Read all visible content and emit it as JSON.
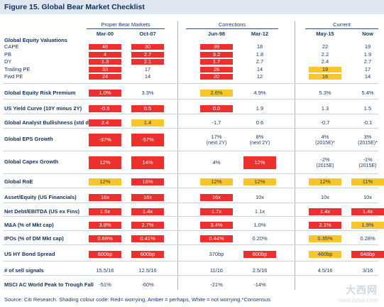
{
  "title": "Figure 15. Global Bear Market Checklist",
  "groups": [
    {
      "label": "Proper Bear Markets"
    },
    {
      "label": "Corrections"
    },
    {
      "label": "Current"
    }
  ],
  "columns": [
    "Mar-00",
    "Oct-07",
    "Jun-98",
    "Mar-12",
    "May-15",
    "Now"
  ],
  "valuation_heading": "Global Equity Valuations",
  "rows": [
    {
      "label": "CAPE",
      "bold": false,
      "cells": [
        {
          "v": "48",
          "c": "red"
        },
        {
          "v": "30",
          "c": "red"
        },
        {
          "v": "39",
          "c": "red"
        },
        {
          "v": "18",
          "c": ""
        },
        {
          "v": "22",
          "c": ""
        },
        {
          "v": "19",
          "c": ""
        }
      ]
    },
    {
      "label": "PB",
      "bold": false,
      "cells": [
        {
          "v": "4",
          "c": "red"
        },
        {
          "v": "2.7",
          "c": "red"
        },
        {
          "v": "3.2",
          "c": "red"
        },
        {
          "v": "1.8",
          "c": ""
        },
        {
          "v": "2.2",
          "c": ""
        },
        {
          "v": "1.9",
          "c": ""
        }
      ]
    },
    {
      "label": "DY",
      "bold": false,
      "cells": [
        {
          "v": "1.3",
          "c": "red"
        },
        {
          "v": "2.1",
          "c": "red"
        },
        {
          "v": "1.7",
          "c": "red"
        },
        {
          "v": "2.7",
          "c": ""
        },
        {
          "v": "2.4",
          "c": ""
        },
        {
          "v": "2.7",
          "c": ""
        }
      ]
    },
    {
      "label": "Trailing PE",
      "bold": false,
      "cells": [
        {
          "v": "33",
          "c": "red"
        },
        {
          "v": "17",
          "c": ""
        },
        {
          "v": "26",
          "c": "red"
        },
        {
          "v": "14",
          "c": ""
        },
        {
          "v": "19",
          "c": "amber"
        },
        {
          "v": "17",
          "c": ""
        }
      ]
    },
    {
      "label": "Fwd PE",
      "bold": false,
      "cells": [
        {
          "v": "24",
          "c": "red"
        },
        {
          "v": "14",
          "c": ""
        },
        {
          "v": "20",
          "c": "red"
        },
        {
          "v": "12",
          "c": ""
        },
        {
          "v": "16",
          "c": "amber"
        },
        {
          "v": "14",
          "c": ""
        }
      ]
    },
    {
      "label": "Global Equity Risk Premium",
      "bold": true,
      "cells": [
        {
          "v": "1.0%",
          "c": "red"
        },
        {
          "v": "3.3%",
          "c": ""
        },
        {
          "v": "2.6%",
          "c": "amber"
        },
        {
          "v": "4.9%",
          "c": ""
        },
        {
          "v": "5.3%",
          "c": ""
        },
        {
          "v": "5.4%",
          "c": ""
        }
      ]
    },
    {
      "label": "US Yield Curve (10Y minus 2Y)",
      "bold": true,
      "cells": [
        {
          "v": "-0.5",
          "c": "red"
        },
        {
          "v": "0.5",
          "c": "red"
        },
        {
          "v": "0.0",
          "c": "red"
        },
        {
          "v": "1.9",
          "c": ""
        },
        {
          "v": "1.3",
          "c": ""
        },
        {
          "v": "1.5",
          "c": ""
        }
      ]
    },
    {
      "label": "Global Analyst Bullishness (std dev)",
      "bold": true,
      "cells": [
        {
          "v": "2.4",
          "c": "red"
        },
        {
          "v": "1.4",
          "c": "amber"
        },
        {
          "v": "-1.7",
          "c": ""
        },
        {
          "v": "0.6",
          "c": ""
        },
        {
          "v": "-0.7",
          "c": ""
        },
        {
          "v": "-0.1",
          "c": ""
        }
      ]
    },
    {
      "label": "Global EPS Growth",
      "bold": true,
      "cells": [
        {
          "v": "-37%",
          "c": "red"
        },
        {
          "v": "-57%",
          "c": "red"
        },
        {
          "v": "17%",
          "sub": "(next 2Y)",
          "c": ""
        },
        {
          "v": "8%",
          "sub": "(next 2Y)",
          "c": ""
        },
        {
          "v": "4%",
          "sub": "(2015E)*",
          "c": ""
        },
        {
          "v": "3%",
          "sub": "(2015E)*",
          "c": ""
        }
      ]
    },
    {
      "label": "Global Capex Growth",
      "bold": true,
      "cells": [
        {
          "v": "12%",
          "c": "red"
        },
        {
          "v": "14%",
          "c": "red"
        },
        {
          "v": "4%",
          "c": ""
        },
        {
          "v": "12%",
          "c": "red"
        },
        {
          "v": "-2%",
          "sub": "(2015E)",
          "c": ""
        },
        {
          "v": "-1%",
          "sub": "(2015E)",
          "c": ""
        }
      ]
    },
    {
      "label": "Global RoE",
      "bold": true,
      "cells": [
        {
          "v": "12%",
          "c": "amber"
        },
        {
          "v": "16%",
          "c": "red"
        },
        {
          "v": "12%",
          "c": "amber"
        },
        {
          "v": "12%",
          "c": "amber"
        },
        {
          "v": "12%",
          "c": "amber"
        },
        {
          "v": "11%",
          "c": "amber"
        }
      ]
    },
    {
      "label": "Asset/Equity (US Financials)",
      "bold": true,
      "cells": [
        {
          "v": "16x",
          "c": "red"
        },
        {
          "v": "16x",
          "c": "red"
        },
        {
          "v": "16x",
          "c": "red"
        },
        {
          "v": "10x",
          "c": ""
        },
        {
          "v": "10x",
          "c": ""
        },
        {
          "v": "10x",
          "c": ""
        }
      ]
    },
    {
      "label": "Net Debt/EBITDA (US ex Fins)",
      "bold": true,
      "cells": [
        {
          "v": "1.5x",
          "c": "red"
        },
        {
          "v": "1.4x",
          "c": "red"
        },
        {
          "v": "1.7x",
          "c": "red"
        },
        {
          "v": "1.1x",
          "c": ""
        },
        {
          "v": "1.4x",
          "c": "red"
        },
        {
          "v": "1.4x",
          "c": "red"
        }
      ]
    },
    {
      "label": "M&A (% of Mkt cap)",
      "bold": true,
      "cells": [
        {
          "v": "3.8%",
          "c": "red"
        },
        {
          "v": "2.7%",
          "c": "red"
        },
        {
          "v": "3.4%",
          "c": "red"
        },
        {
          "v": "1.0%",
          "c": ""
        },
        {
          "v": "2.1%",
          "c": "red"
        },
        {
          "v": "1.9%",
          "c": "amber"
        }
      ]
    },
    {
      "label": "IPOs (% of DM Mkt cap)",
      "bold": true,
      "cells": [
        {
          "v": "0.69%",
          "c": "red"
        },
        {
          "v": "0.41%",
          "c": "red"
        },
        {
          "v": "0.44%",
          "c": "red"
        },
        {
          "v": "0.20%",
          "c": ""
        },
        {
          "v": "0.35%",
          "c": "amber"
        },
        {
          "v": "0.28%",
          "c": ""
        }
      ]
    },
    {
      "label": "US HY Bond Spread",
      "bold": true,
      "cells": [
        {
          "v": "600bp",
          "c": "red"
        },
        {
          "v": "600bp",
          "c": "red"
        },
        {
          "v": "370bp",
          "c": ""
        },
        {
          "v": "600bp",
          "c": "red"
        },
        {
          "v": "460bp",
          "c": "amber"
        },
        {
          "v": "648bp",
          "c": "red"
        }
      ]
    },
    {
      "label": "# of sell signals",
      "bold": true,
      "cells": [
        {
          "v": "15.5/16",
          "c": ""
        },
        {
          "v": "12.5/16",
          "c": ""
        },
        {
          "v": "11/16",
          "c": ""
        },
        {
          "v": "2.5/16",
          "c": ""
        },
        {
          "v": "4.5/16",
          "c": ""
        },
        {
          "v": "3/16",
          "c": ""
        }
      ]
    },
    {
      "label": "MSCI AC World Peak to Trough Fall",
      "bold": true,
      "cells": [
        {
          "v": "-51%",
          "c": ""
        },
        {
          "v": "-60%",
          "c": ""
        },
        {
          "v": "-21%",
          "c": ""
        },
        {
          "v": "-14%",
          "c": ""
        },
        {
          "v": "",
          "c": ""
        },
        {
          "v": "",
          "c": ""
        }
      ]
    }
  ],
  "footer": "Source: Citi Research. Shading colour code: Red= worrying, Amber = perhaps, White = not worrying.*Consensus",
  "watermark": {
    "big": "大西网",
    "small": "www.dxbei.com"
  },
  "colors": {
    "red": "#ee2f2f",
    "amber": "#f9c52c",
    "title_bg": "#dfe7f1",
    "text": "#1a3a6a"
  }
}
